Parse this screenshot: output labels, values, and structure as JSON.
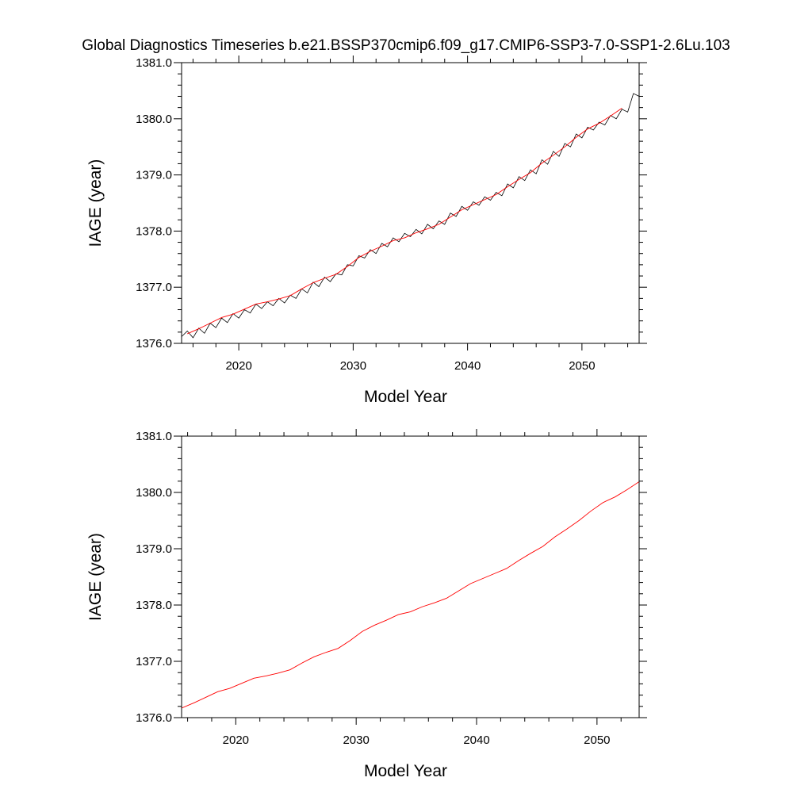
{
  "title": "Global Diagnostics Timeseries b.e21.BSSP370cmip6.f09_g17.CMIP6-SSP3-7.0-SSP1-2.6Lu.103",
  "colors": {
    "monthly": "#000000",
    "annual": "#ff0000",
    "frame": "#000000",
    "background": "#ffffff"
  },
  "chart_data": [
    {
      "type": "line",
      "xlabel": "Model Year",
      "ylabel": "IAGE (year)",
      "xlim": [
        2015,
        2055
      ],
      "ylim": [
        1376.0,
        1381.0
      ],
      "x_major_ticks": [
        2020,
        2030,
        2040,
        2050
      ],
      "x_tick_labels": [
        "2020",
        "2030",
        "2040",
        "2050"
      ],
      "x_minor_step": 2,
      "y_major_ticks": [
        1376.0,
        1377.0,
        1378.0,
        1379.0,
        1380.0,
        1381.0
      ],
      "y_tick_labels": [
        "1376.0",
        "1377.0",
        "1378.0",
        "1379.0",
        "1380.0",
        "1381.0"
      ],
      "y_minor_step": 0.2,
      "grid": false,
      "legend": "none",
      "series": [
        {
          "style": "monthly",
          "color": "#000000",
          "x": [
            2015.0,
            2015.5,
            2016.0,
            2016.5,
            2017.0,
            2017.5,
            2018.0,
            2018.5,
            2019.0,
            2019.5,
            2020.0,
            2020.5,
            2021.0,
            2021.5,
            2022.0,
            2022.5,
            2023.0,
            2023.5,
            2024.0,
            2024.5,
            2025.0,
            2025.5,
            2026.0,
            2026.5,
            2027.0,
            2027.5,
            2028.0,
            2028.5,
            2029.0,
            2029.5,
            2030.0,
            2030.5,
            2031.0,
            2031.5,
            2032.0,
            2032.5,
            2033.0,
            2033.5,
            2034.0,
            2034.5,
            2035.0,
            2035.5,
            2036.0,
            2036.5,
            2037.0,
            2037.5,
            2038.0,
            2038.5,
            2039.0,
            2039.5,
            2040.0,
            2040.5,
            2041.0,
            2041.5,
            2042.0,
            2042.5,
            2043.0,
            2043.5,
            2044.0,
            2044.5,
            2045.0,
            2045.5,
            2046.0,
            2046.5,
            2047.0,
            2047.5,
            2048.0,
            2048.5,
            2049.0,
            2049.5,
            2050.0,
            2050.5,
            2051.0,
            2051.5,
            2052.0,
            2052.5,
            2053.0,
            2053.5,
            2054.0,
            2054.5,
            2055.0
          ],
          "y": [
            1376.12,
            1376.22,
            1376.1,
            1376.27,
            1376.18,
            1376.36,
            1376.28,
            1376.45,
            1376.37,
            1376.53,
            1376.45,
            1376.6,
            1376.54,
            1376.7,
            1376.62,
            1376.74,
            1376.67,
            1376.8,
            1376.72,
            1376.86,
            1376.8,
            1376.97,
            1376.9,
            1377.09,
            1377.01,
            1377.18,
            1377.1,
            1377.24,
            1377.22,
            1377.4,
            1377.38,
            1377.56,
            1377.52,
            1377.67,
            1377.6,
            1377.78,
            1377.72,
            1377.88,
            1377.81,
            1377.96,
            1377.9,
            1378.03,
            1377.95,
            1378.12,
            1378.04,
            1378.18,
            1378.12,
            1378.32,
            1378.26,
            1378.44,
            1378.37,
            1378.52,
            1378.46,
            1378.61,
            1378.55,
            1378.69,
            1378.63,
            1378.84,
            1378.77,
            1378.97,
            1378.9,
            1379.09,
            1379.02,
            1379.27,
            1379.19,
            1379.42,
            1379.33,
            1379.56,
            1379.5,
            1379.73,
            1379.66,
            1379.85,
            1379.8,
            1379.94,
            1379.89,
            1380.06,
            1380.0,
            1380.17,
            1380.12,
            1380.45,
            1380.4
          ]
        },
        {
          "style": "annual",
          "color": "#ff0000",
          "x": [
            2015.5,
            2016.5,
            2017.5,
            2018.5,
            2019.5,
            2020.5,
            2021.5,
            2022.5,
            2023.5,
            2024.5,
            2025.5,
            2026.5,
            2027.5,
            2028.5,
            2029.5,
            2030.5,
            2031.5,
            2032.5,
            2033.5,
            2034.5,
            2035.5,
            2036.5,
            2037.5,
            2038.5,
            2039.5,
            2040.5,
            2041.5,
            2042.5,
            2043.5,
            2044.5,
            2045.5,
            2046.5,
            2047.5,
            2048.5,
            2049.5,
            2050.5,
            2051.5,
            2052.5,
            2053.5
          ],
          "y": [
            1376.17,
            1376.26,
            1376.36,
            1376.46,
            1376.52,
            1376.61,
            1376.7,
            1376.74,
            1376.79,
            1376.85,
            1376.97,
            1377.08,
            1377.16,
            1377.23,
            1377.37,
            1377.53,
            1377.64,
            1377.73,
            1377.83,
            1377.88,
            1377.97,
            1378.04,
            1378.12,
            1378.25,
            1378.38,
            1378.47,
            1378.56,
            1378.65,
            1378.79,
            1378.92,
            1379.04,
            1379.21,
            1379.35,
            1379.5,
            1379.67,
            1379.82,
            1379.92,
            1380.05,
            1380.19
          ]
        }
      ]
    },
    {
      "type": "line",
      "xlabel": "Model Year",
      "ylabel": "IAGE (year)",
      "xlim": [
        2015.5,
        2053.5
      ],
      "ylim": [
        1376.0,
        1381.0
      ],
      "x_major_ticks": [
        2020,
        2030,
        2040,
        2050
      ],
      "x_tick_labels": [
        "2020",
        "2030",
        "2040",
        "2050"
      ],
      "x_minor_step": 2,
      "y_major_ticks": [
        1376.0,
        1377.0,
        1378.0,
        1379.0,
        1380.0,
        1381.0
      ],
      "y_tick_labels": [
        "1376.0",
        "1377.0",
        "1378.0",
        "1379.0",
        "1380.0",
        "1381.0"
      ],
      "y_minor_step": 0.2,
      "grid": false,
      "legend": "none",
      "series": [
        {
          "style": "annual",
          "color": "#ff0000",
          "x": [
            2015.5,
            2016.5,
            2017.5,
            2018.5,
            2019.5,
            2020.5,
            2021.5,
            2022.5,
            2023.5,
            2024.5,
            2025.5,
            2026.5,
            2027.5,
            2028.5,
            2029.5,
            2030.5,
            2031.5,
            2032.5,
            2033.5,
            2034.5,
            2035.5,
            2036.5,
            2037.5,
            2038.5,
            2039.5,
            2040.5,
            2041.5,
            2042.5,
            2043.5,
            2044.5,
            2045.5,
            2046.5,
            2047.5,
            2048.5,
            2049.5,
            2050.5,
            2051.5,
            2052.5,
            2053.5
          ],
          "y": [
            1376.17,
            1376.26,
            1376.36,
            1376.46,
            1376.52,
            1376.61,
            1376.7,
            1376.74,
            1376.79,
            1376.85,
            1376.97,
            1377.08,
            1377.16,
            1377.23,
            1377.37,
            1377.53,
            1377.64,
            1377.73,
            1377.83,
            1377.88,
            1377.97,
            1378.04,
            1378.12,
            1378.25,
            1378.38,
            1378.47,
            1378.56,
            1378.65,
            1378.79,
            1378.92,
            1379.04,
            1379.21,
            1379.35,
            1379.5,
            1379.67,
            1379.82,
            1379.92,
            1380.05,
            1380.19
          ]
        }
      ]
    }
  ]
}
